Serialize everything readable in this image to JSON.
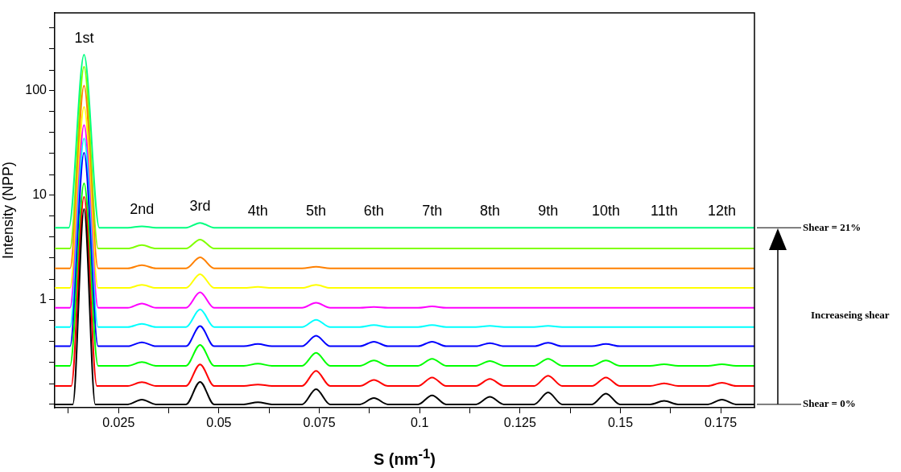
{
  "chart_data": {
    "type": "line",
    "ylabel": "Intensity (NPP)",
    "xlabel": "S (nm$^{-1}$)",
    "xlim": [
      0.0091,
      0.1834
    ],
    "xticks": [
      {
        "value": 0.0125,
        "label": null
      },
      0.025,
      {
        "value": 0.0375,
        "label": null
      },
      0.05,
      {
        "value": 0.0625,
        "label": null
      },
      0.075,
      {
        "value": 0.0875,
        "label": null
      },
      0.1,
      {
        "value": 0.1125,
        "label": null
      },
      0.125,
      {
        "value": 0.1375,
        "label": null
      },
      0.15,
      {
        "value": 0.1625,
        "label": null
      },
      0.175
    ],
    "log": "y",
    "ylim": [
      0.093,
      557
    ],
    "yticks": [
      {
        "value": 0.1,
        "label": null
      },
      {
        "value": 0.158,
        "label": null
      },
      {
        "value": 0.251,
        "label": null
      },
      {
        "value": 0.398,
        "label": null
      },
      {
        "value": 0.631,
        "label": null
      },
      1,
      {
        "value": 1.58,
        "label": null
      },
      {
        "value": 2.51,
        "label": null
      },
      {
        "value": 3.98,
        "label": null
      },
      {
        "value": 6.31,
        "label": null
      },
      10,
      {
        "value": 15.8,
        "label": null
      },
      {
        "value": 25.1,
        "label": null
      },
      {
        "value": 39.8,
        "label": null
      },
      {
        "value": 63.1,
        "label": null
      },
      100,
      {
        "value": 158,
        "label": null
      },
      {
        "value": 251,
        "label": null
      },
      {
        "value": 398,
        "label": null
      }
    ],
    "grid": false,
    "series": [
      {
        "color": "#000000",
        "x": [
          0.0091,
          0.0136,
          0.0164,
          0.0192,
          0.0273,
          0.0308,
          0.0343,
          0.0418,
          0.0453,
          0.0488,
          0.0562,
          0.0597,
          0.0632,
          0.0707,
          0.0742,
          0.0777,
          0.0851,
          0.0886,
          0.0921,
          0.0996,
          0.1031,
          0.1066,
          0.114,
          0.1175,
          0.121,
          0.1285,
          0.132,
          0.1355,
          0.1429,
          0.1464,
          0.1499,
          0.1574,
          0.1609,
          0.1644,
          0.1718,
          0.1753,
          0.1788,
          0.1834
        ],
        "values": [
          0.1,
          0.1,
          7.4,
          0.1,
          0.1,
          0.111,
          0.1,
          0.1,
          0.164,
          0.1,
          0.1,
          0.105,
          0.1,
          0.1,
          0.14,
          0.1,
          0.1,
          0.115,
          0.1,
          0.1,
          0.122,
          0.1,
          0.1,
          0.118,
          0.1,
          0.1,
          0.13,
          0.1,
          0.1,
          0.127,
          0.1,
          0.1,
          0.108,
          0.1,
          0.1,
          0.111,
          0.1,
          0.1
        ]
      },
      {
        "color": "#ff0000",
        "x": [
          0.0091,
          0.0132,
          0.0164,
          0.0196,
          0.0273,
          0.0308,
          0.0343,
          0.0418,
          0.0453,
          0.0488,
          0.0562,
          0.0597,
          0.0632,
          0.0707,
          0.0742,
          0.0777,
          0.0851,
          0.0886,
          0.0921,
          0.0996,
          0.1031,
          0.1066,
          0.114,
          0.1175,
          0.121,
          0.1285,
          0.132,
          0.1355,
          0.1429,
          0.1464,
          0.1499,
          0.1574,
          0.1609,
          0.1644,
          0.1718,
          0.1753,
          0.1788,
          0.1834
        ],
        "values": [
          0.15,
          0.15,
          9.7,
          0.15,
          0.15,
          0.163,
          0.15,
          0.15,
          0.241,
          0.15,
          0.15,
          0.155,
          0.15,
          0.15,
          0.209,
          0.15,
          0.15,
          0.171,
          0.15,
          0.15,
          0.181,
          0.15,
          0.15,
          0.175,
          0.15,
          0.15,
          0.188,
          0.15,
          0.15,
          0.181,
          0.15,
          0.15,
          0.159,
          0.15,
          0.15,
          0.161,
          0.15,
          0.15
        ]
      },
      {
        "color": "#00ff00",
        "x": [
          0.0091,
          0.0129,
          0.0164,
          0.0199,
          0.0273,
          0.0308,
          0.0343,
          0.0418,
          0.0453,
          0.0488,
          0.0562,
          0.0597,
          0.0632,
          0.0707,
          0.0742,
          0.0777,
          0.0851,
          0.0886,
          0.0921,
          0.0996,
          0.1031,
          0.1066,
          0.114,
          0.1175,
          0.121,
          0.1285,
          0.132,
          0.1355,
          0.1429,
          0.1464,
          0.1499,
          0.1574,
          0.1609,
          0.1644,
          0.1718,
          0.1753,
          0.1788,
          0.1834
        ],
        "values": [
          0.234,
          0.234,
          13,
          0.234,
          0.234,
          0.254,
          0.234,
          0.234,
          0.371,
          0.234,
          0.234,
          0.245,
          0.234,
          0.234,
          0.311,
          0.234,
          0.234,
          0.263,
          0.234,
          0.234,
          0.273,
          0.234,
          0.234,
          0.26,
          0.234,
          0.234,
          0.273,
          0.234,
          0.234,
          0.263,
          0.234,
          0.234,
          0.242,
          0.234,
          0.234,
          0.242,
          0.234,
          0.234
        ]
      },
      {
        "color": "#0000ff",
        "x": [
          0.0091,
          0.0129,
          0.0164,
          0.0199,
          0.0273,
          0.0308,
          0.0343,
          0.0418,
          0.0453,
          0.0488,
          0.0562,
          0.0597,
          0.0632,
          0.0707,
          0.0742,
          0.0777,
          0.0851,
          0.0886,
          0.0921,
          0.0996,
          0.1031,
          0.1066,
          0.114,
          0.1175,
          0.121,
          0.1285,
          0.132,
          0.1355,
          0.1429,
          0.1464,
          0.1499,
          0.1834
        ],
        "values": [
          0.36,
          0.36,
          25.5,
          0.36,
          0.36,
          0.393,
          0.36,
          0.36,
          0.561,
          0.36,
          0.36,
          0.378,
          0.36,
          0.36,
          0.453,
          0.36,
          0.36,
          0.398,
          0.36,
          0.36,
          0.398,
          0.36,
          0.36,
          0.386,
          0.36,
          0.36,
          0.388,
          0.36,
          0.36,
          0.378,
          0.36,
          0.36
        ]
      },
      {
        "color": "#00ffff",
        "x": [
          0.0091,
          0.0129,
          0.0164,
          0.0199,
          0.0273,
          0.0308,
          0.0343,
          0.0418,
          0.0453,
          0.0488,
          0.0707,
          0.0742,
          0.0777,
          0.0851,
          0.0886,
          0.0921,
          0.0996,
          0.1031,
          0.1066,
          0.114,
          0.1175,
          0.121,
          0.1285,
          0.132,
          0.1355,
          0.1834
        ],
        "values": [
          0.55,
          0.55,
          35,
          0.55,
          0.55,
          0.59,
          0.55,
          0.55,
          0.812,
          0.55,
          0.55,
          0.645,
          0.55,
          0.55,
          0.573,
          0.55,
          0.55,
          0.573,
          0.55,
          0.55,
          0.563,
          0.55,
          0.55,
          0.563,
          0.55,
          0.55
        ]
      },
      {
        "color": "#ff00ff",
        "x": [
          0.0091,
          0.0129,
          0.0164,
          0.0199,
          0.0273,
          0.0308,
          0.0343,
          0.0418,
          0.0453,
          0.0488,
          0.0707,
          0.0742,
          0.0777,
          0.0851,
          0.0886,
          0.0921,
          0.0996,
          0.1031,
          0.1066,
          0.1834
        ],
        "values": [
          0.84,
          0.84,
          47,
          0.84,
          0.84,
          0.922,
          0.84,
          0.84,
          1.18,
          0.84,
          0.84,
          0.939,
          0.84,
          0.84,
          0.855,
          0.84,
          0.84,
          0.865,
          0.84,
          0.84
        ]
      },
      {
        "color": "#ffff00",
        "x": [
          0.0091,
          0.0129,
          0.0164,
          0.0199,
          0.0273,
          0.0308,
          0.0343,
          0.0418,
          0.0453,
          0.0488,
          0.0562,
          0.0597,
          0.0632,
          0.0707,
          0.0742,
          0.0777,
          0.1834
        ],
        "values": [
          1.3,
          1.3,
          70,
          1.3,
          1.3,
          1.39,
          1.3,
          1.3,
          1.76,
          1.3,
          1.3,
          1.33,
          1.3,
          1.3,
          1.39,
          1.3,
          1.3
        ]
      },
      {
        "color": "#ff8000",
        "x": [
          0.0091,
          0.0129,
          0.0164,
          0.0199,
          0.0273,
          0.0308,
          0.0343,
          0.0418,
          0.0453,
          0.0488,
          0.0707,
          0.0742,
          0.0777,
          0.1834
        ],
        "values": [
          2,
          2,
          112,
          2,
          2,
          2.15,
          2,
          2,
          2.55,
          2,
          2,
          2.07,
          2,
          2
        ]
      },
      {
        "color": "#80ff00",
        "x": [
          0.0091,
          0.0129,
          0.0164,
          0.0199,
          0.0273,
          0.0308,
          0.0343,
          0.0418,
          0.0453,
          0.0488,
          0.1834
        ],
        "values": [
          3.1,
          3.1,
          170,
          3.1,
          3.1,
          3.34,
          3.1,
          3.1,
          3.77,
          3.1,
          3.1
        ]
      },
      {
        "color": "#00ff80",
        "x": [
          0.0091,
          0.0126,
          0.0164,
          0.0202,
          0.0273,
          0.0308,
          0.0343,
          0.0418,
          0.0453,
          0.0488,
          0.1834
        ],
        "values": [
          4.9,
          4.9,
          222,
          4.9,
          4.9,
          5.05,
          4.9,
          4.9,
          5.45,
          4.9,
          4.9
        ]
      }
    ],
    "annotations": [
      "1st",
      "2nd",
      "3rd",
      "4th",
      "5th",
      "6th",
      "7th",
      "8th",
      "9th",
      "10th",
      "11th",
      "12th",
      "Shear = 21%",
      "Shear = 0%",
      "Increaseing shear"
    ]
  }
}
